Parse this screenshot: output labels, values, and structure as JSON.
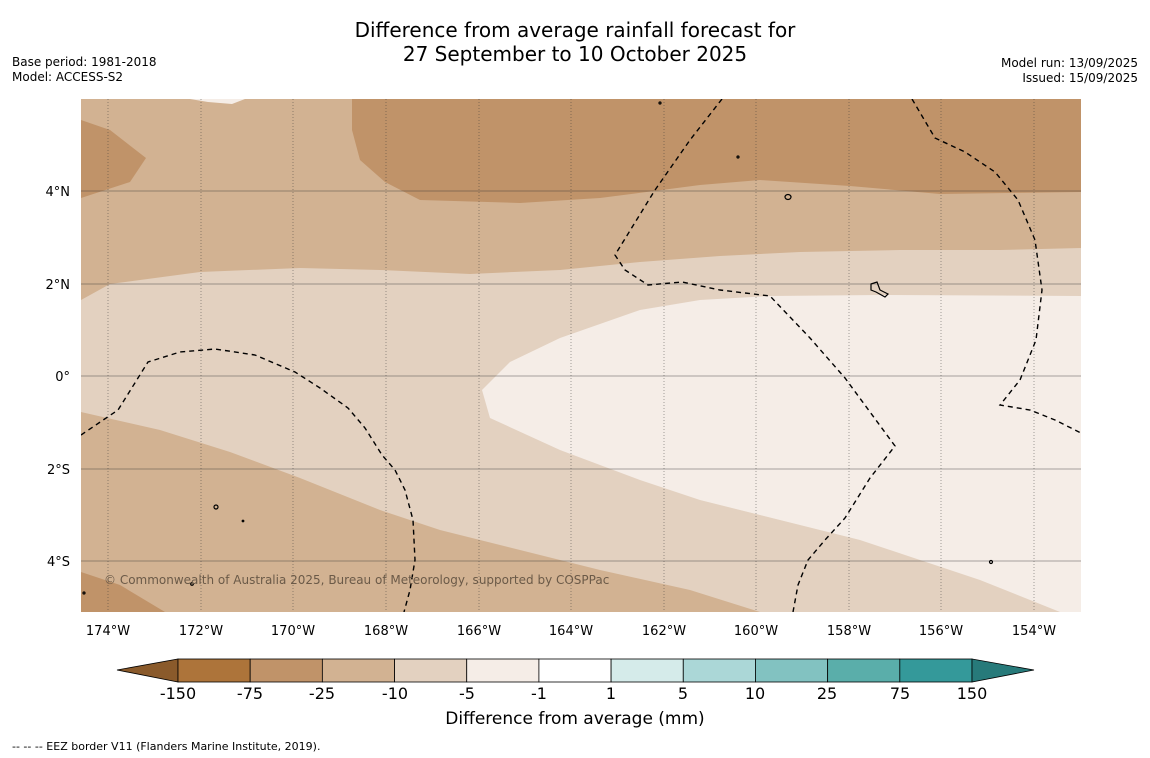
{
  "title": {
    "line1": "Difference from average rainfall forecast for",
    "line2": "27 September to 10 October 2025"
  },
  "meta_left": {
    "base_period": "Base period: 1981-2018",
    "model": "Model: ACCESS-S2"
  },
  "meta_right": {
    "model_run": "Model run: 13/09/2025",
    "issued": "Issued: 15/09/2025"
  },
  "map": {
    "lon_labels": [
      "174°W",
      "172°W",
      "170°W",
      "168°W",
      "166°W",
      "164°W",
      "162°W",
      "160°W",
      "158°W",
      "156°W",
      "154°W"
    ],
    "lat_labels": [
      "4°N",
      "2°N",
      "0°",
      "2°S",
      "4°S"
    ],
    "copyright": "© Commonwealth of Australia 2025, Bureau of Meteorology, supported by COSPPac"
  },
  "colorbar": {
    "tick_labels": [
      "-150",
      "-75",
      "-25",
      "-10",
      "-5",
      "-1",
      "1",
      "5",
      "10",
      "25",
      "75",
      "150"
    ],
    "colors": [
      "#ad743a",
      "#c09369",
      "#d2b292",
      "#e3d1c0",
      "#f5ede7",
      "#ffffff",
      "#d5ebea",
      "#abd7d7",
      "#82c2c1",
      "#5aaeaa",
      "#34999a"
    ],
    "extend_low_color": "#8a5a2b",
    "extend_high_color": "#277a7a",
    "title": "Difference from average (mm)"
  },
  "footnote": "--  --  -- EEZ border V11 (Flanders Marine Institute, 2019)."
}
